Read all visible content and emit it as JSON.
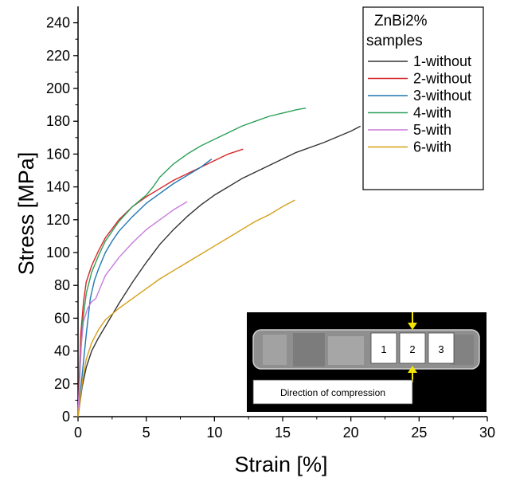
{
  "chart_data": {
    "type": "line",
    "xlabel": "Strain [%]",
    "ylabel": "Stress [MPa]",
    "xlim": [
      0,
      30
    ],
    "ylim": [
      0,
      250
    ],
    "xticks": [
      0,
      5,
      10,
      15,
      20,
      25,
      30
    ],
    "yticks": [
      0,
      20,
      40,
      60,
      80,
      100,
      120,
      140,
      160,
      180,
      200,
      220,
      240
    ],
    "grid": false,
    "legend": {
      "title_line1": "ZnBi2%",
      "title_line2": "samples",
      "position": "top-right"
    },
    "series": [
      {
        "name": "1-without",
        "color": "#333333",
        "x": [
          0,
          0.3,
          0.6,
          1.0,
          1.5,
          2.0,
          3.0,
          4.0,
          5.0,
          6.0,
          7.0,
          8.0,
          9.0,
          10.0,
          11.0,
          12.0,
          14.0,
          16.0,
          18.0,
          20.0,
          20.7
        ],
        "y": [
          0,
          18,
          30,
          40,
          48,
          55,
          69,
          82,
          94,
          105,
          114,
          122,
          129,
          135,
          140,
          145,
          153,
          161,
          167,
          174,
          177
        ]
      },
      {
        "name": "2-without",
        "color": "#d62728",
        "x": [
          0,
          0.2,
          0.4,
          0.6,
          1.0,
          1.5,
          2.0,
          3.0,
          4.0,
          5.0,
          6.0,
          7.0,
          8.0,
          9.0,
          10.0,
          11.0,
          12.1
        ],
        "y": [
          0,
          50,
          70,
          82,
          92,
          101,
          109,
          120,
          128,
          134,
          139,
          144,
          148,
          152,
          156,
          160,
          163
        ]
      },
      {
        "name": "3-without",
        "color": "#1f77b4",
        "x": [
          0,
          0.3,
          0.6,
          0.9,
          1.2,
          1.5,
          2.0,
          2.5,
          3.0,
          4.0,
          5.0,
          6.0,
          7.0,
          8.0,
          9.0,
          9.8
        ],
        "y": [
          0,
          25,
          50,
          72,
          83,
          90,
          100,
          107,
          113,
          122,
          130,
          136,
          142,
          147,
          152,
          157
        ]
      },
      {
        "name": "4-with",
        "color": "#2ca05a",
        "x": [
          0,
          0.3,
          0.6,
          1.0,
          1.5,
          2.0,
          3.0,
          4.0,
          5.0,
          5.5,
          6.0,
          7.0,
          8.0,
          9.0,
          10.0,
          11.0,
          12.0,
          13.0,
          14.0,
          15.0,
          16.0,
          16.7
        ],
        "y": [
          0,
          55,
          75,
          88,
          98,
          107,
          119,
          128,
          135,
          140,
          146,
          154,
          160,
          165,
          169,
          173,
          177,
          180,
          183,
          185,
          187,
          188
        ]
      },
      {
        "name": "5-with",
        "color": "#c77cdb",
        "x": [
          0,
          0.2,
          0.4,
          0.7,
          1.0,
          1.3,
          1.6,
          2.0,
          3.0,
          4.0,
          5.0,
          6.0,
          7.0,
          8.0
        ],
        "y": [
          0,
          40,
          58,
          66,
          70,
          72,
          78,
          86,
          97,
          106,
          114,
          120,
          126,
          131
        ]
      },
      {
        "name": "6-with",
        "color": "#d4a017",
        "x": [
          0,
          0.3,
          0.6,
          1.0,
          1.5,
          2.0,
          3.0,
          4.0,
          5.0,
          6.0,
          7.0,
          8.0,
          9.0,
          10.0,
          11.0,
          12.0,
          13.0,
          14.0,
          15.0,
          15.9
        ],
        "y": [
          0,
          20,
          35,
          45,
          53,
          59,
          66,
          72,
          78,
          84,
          89,
          94,
          99,
          104,
          109,
          114,
          119,
          123,
          128,
          132
        ]
      }
    ]
  },
  "inset": {
    "labels": [
      "1",
      "2",
      "3"
    ],
    "caption": "Direction of compression"
  }
}
